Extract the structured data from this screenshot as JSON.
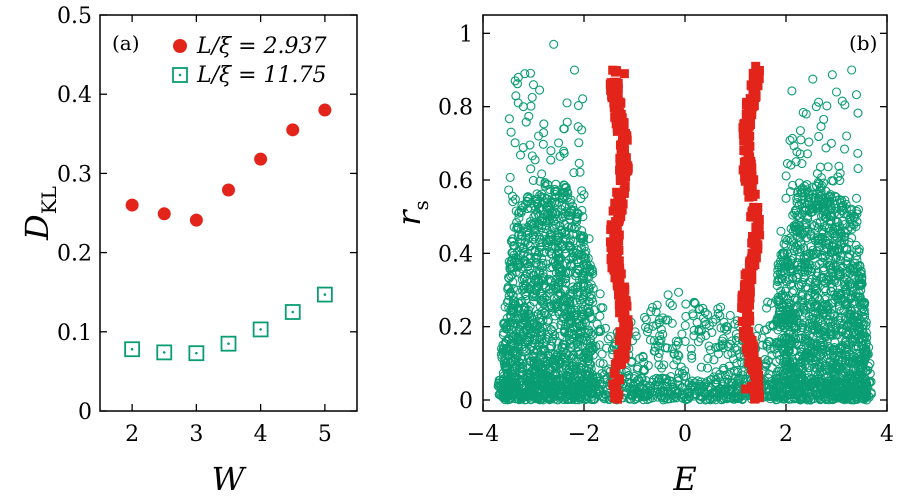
{
  "colors": {
    "red": "#e3241b",
    "green": "#0a9d73",
    "axis": "#000000"
  },
  "chart_data": [
    {
      "type": "scatter",
      "panel_label": "(a)",
      "xlabel": "W",
      "ylabel_main": "D",
      "ylabel_sub": "KL",
      "xlim": [
        1.5,
        5.5
      ],
      "ylim": [
        0,
        0.5
      ],
      "xticks": [
        2,
        3,
        4,
        5
      ],
      "yticks": [
        0,
        0.1,
        0.2,
        0.3,
        0.4,
        0.5
      ],
      "xtick_labels": [
        "2",
        "3",
        "4",
        "5"
      ],
      "ytick_labels": [
        "0",
        "0.1",
        "0.2",
        "0.3",
        "0.4",
        "0.5"
      ],
      "series": [
        {
          "name": "L/ξ = 2.937",
          "legend_text": "L/ξ = 2.937",
          "marker": "filled-circle",
          "color": "#e3241b",
          "x": [
            2,
            2.5,
            3,
            3.5,
            4,
            4.5,
            5
          ],
          "y": [
            0.26,
            0.249,
            0.241,
            0.279,
            0.318,
            0.355,
            0.38
          ]
        },
        {
          "name": "L/ξ = 11.75",
          "legend_text": "L/ξ = 11.75",
          "marker": "open-square-dot",
          "color": "#0a9d73",
          "x": [
            2,
            2.5,
            3,
            3.5,
            4,
            4.5,
            5
          ],
          "y": [
            0.078,
            0.074,
            0.073,
            0.085,
            0.103,
            0.125,
            0.147
          ]
        }
      ]
    },
    {
      "type": "scatter",
      "panel_label": "(b)",
      "xlabel": "E",
      "ylabel_main": "r",
      "ylabel_sub": "s",
      "xlim": [
        -4,
        4
      ],
      "ylim": [
        -0.03,
        1.05
      ],
      "xticks": [
        -4,
        -2,
        0,
        2,
        4
      ],
      "yticks": [
        0,
        0.2,
        0.4,
        0.6,
        0.8,
        1
      ],
      "xtick_labels": [
        "−4",
        "−2",
        "0",
        "2",
        "4"
      ],
      "ytick_labels": [
        "0",
        "0.2",
        "0.4",
        "0.6",
        "0.8",
        "1"
      ],
      "series": [
        {
          "name": "green open circles (dense spread of r_s over E in [-3.7, 3.7], dense near 0-0.5, sparse up to ~0.97)",
          "marker": "open-circle",
          "color": "#0a9d73",
          "x": [
            -3.5,
            -3.3,
            -3.2,
            -3.0,
            -2.9,
            -2.6,
            -2.4,
            -2.2,
            -2.0,
            -1.9,
            1.9,
            2.0,
            2.2,
            2.4,
            2.6,
            2.9,
            3.0,
            3.2,
            3.3,
            3.45
          ],
          "y": [
            0.04,
            0.88,
            0.8,
            0.86,
            0.72,
            0.97,
            0.74,
            0.62,
            0.56,
            0.44,
            0.46,
            0.55,
            0.65,
            0.78,
            0.8,
            0.7,
            0.84,
            0.72,
            0.9,
            0.05
          ]
        },
        {
          "name": "red filled squares (bands near E ≈ −1.3 and E ≈ 1.3, r_s 0 to ~0.9)",
          "marker": "filled-square",
          "color": "#e3241b",
          "x": [
            -1.4,
            -1.3,
            -1.2,
            1.2,
            1.3,
            1.4
          ],
          "y": [
            0.02,
            0.45,
            0.89,
            0.03,
            0.5,
            0.91
          ]
        }
      ]
    }
  ]
}
